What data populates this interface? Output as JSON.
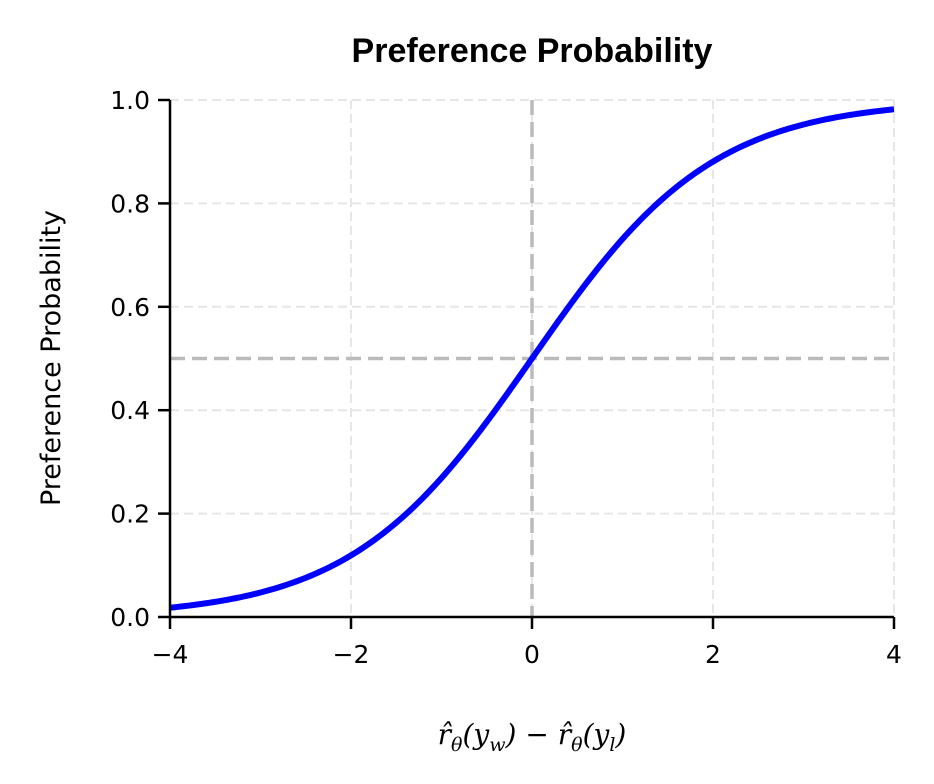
{
  "chart_data": {
    "type": "line",
    "title": "Preference Probability",
    "xlabel": "r̂θ(yw) − r̂θ(yl)",
    "xlabel_parts": {
      "left": "r̂",
      "left_sub1": "θ",
      "left_arg": "(y",
      "left_arg_sub": "w",
      "left_close": ")",
      "minus": " − ",
      "right": "r̂",
      "right_sub1": "θ",
      "right_arg": "(y",
      "right_arg_sub": "l",
      "right_close": ")"
    },
    "ylabel": "Preference Probability",
    "xlim": [
      -4,
      4
    ],
    "ylim": [
      0,
      1
    ],
    "xticks": [
      -4,
      -2,
      0,
      2,
      4
    ],
    "xtick_labels": [
      "−4",
      "−2",
      "0",
      "2",
      "4"
    ],
    "yticks": [
      0,
      0.2,
      0.4,
      0.6,
      0.8,
      1.0
    ],
    "ytick_labels": [
      "0.0",
      "0.2",
      "0.4",
      "0.6",
      "0.8",
      "1.0"
    ],
    "grid": true,
    "series": [
      {
        "name": "sigmoid",
        "function": "1/(1+exp(-x))",
        "color": "#0000ff",
        "x": [
          -4,
          -3,
          -2,
          -1,
          0,
          1,
          2,
          3,
          4
        ],
        "values": [
          0.018,
          0.047,
          0.119,
          0.269,
          0.5,
          0.731,
          0.881,
          0.953,
          0.982
        ]
      }
    ],
    "reference_lines": [
      {
        "orientation": "horizontal",
        "value": 0.5,
        "color": "#bbbbbb",
        "style": "dashed"
      },
      {
        "orientation": "vertical",
        "value": 0,
        "color": "#bbbbbb",
        "style": "dashed"
      }
    ],
    "legend": null
  },
  "colors": {
    "curve": "#0000ff",
    "reference": "#bbbbbb",
    "grid": "#e6e6e6",
    "axis": "#000000"
  }
}
